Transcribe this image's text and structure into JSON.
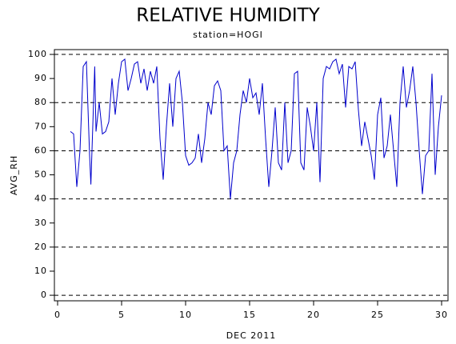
{
  "chart_data": {
    "type": "line",
    "title": "RELATIVE HUMIDITY",
    "subtitle": "station=HOGI",
    "x_label": "DEC 2011",
    "y_label": "AVG_RH",
    "x": [
      1,
      1.25,
      1.5,
      1.75,
      2,
      2.25,
      2.5,
      2.6,
      2.9,
      3,
      3.25,
      3.5,
      3.75,
      4,
      4.25,
      4.5,
      4.75,
      5,
      5.25,
      5.5,
      5.75,
      6,
      6.25,
      6.5,
      6.75,
      7,
      7.25,
      7.5,
      7.75,
      8,
      8.25,
      8.5,
      8.75,
      9,
      9.25,
      9.5,
      9.75,
      10,
      10.25,
      10.5,
      10.75,
      11,
      11.25,
      11.5,
      11.75,
      12,
      12.25,
      12.5,
      12.75,
      13,
      13.25,
      13.5,
      13.75,
      14,
      14.25,
      14.5,
      14.75,
      15,
      15.25,
      15.5,
      15.75,
      16,
      16.25,
      16.5,
      16.75,
      17,
      17.25,
      17.5,
      17.75,
      18,
      18.25,
      18.5,
      18.75,
      19,
      19.25,
      19.5,
      19.75,
      20,
      20.25,
      20.5,
      20.75,
      21,
      21.25,
      21.5,
      21.75,
      22,
      22.25,
      22.5,
      22.75,
      23,
      23.25,
      23.5,
      23.75,
      24,
      24.25,
      24.5,
      24.75,
      25,
      25.25,
      25.5,
      25.75,
      26,
      26.25,
      26.5,
      26.75,
      27,
      27.25,
      27.5,
      27.75,
      28,
      28.25,
      28.5,
      28.75,
      29,
      29.25,
      29.5,
      29.75,
      30
    ],
    "series": [
      {
        "name": "AVG_RH",
        "color": "#0000cc",
        "values": [
          68,
          67,
          45,
          60,
          95,
          97,
          58,
          46,
          95,
          68,
          80,
          67,
          68,
          72,
          90,
          75,
          88,
          97,
          98,
          85,
          90,
          96,
          97,
          88,
          94,
          85,
          93,
          88,
          95,
          65,
          48,
          70,
          88,
          70,
          90,
          93,
          80,
          58,
          54,
          55,
          57,
          67,
          55,
          65,
          80,
          75,
          87,
          89,
          85,
          60,
          62,
          40,
          55,
          60,
          75,
          85,
          80,
          90,
          82,
          84,
          75,
          88,
          65,
          45,
          60,
          78,
          55,
          52,
          80,
          55,
          60,
          92,
          93,
          55,
          52,
          78,
          70,
          60,
          80,
          47,
          90,
          95,
          94,
          97,
          98,
          92,
          96,
          78,
          95,
          94,
          97,
          77,
          62,
          72,
          65,
          58,
          48,
          75,
          82,
          57,
          62,
          75,
          60,
          45,
          80,
          95,
          78,
          85,
          95,
          80,
          60,
          42,
          58,
          60,
          92,
          50,
          70,
          83
        ]
      }
    ],
    "xlim": [
      -0.25,
      30.5
    ],
    "xticks": [
      0,
      5,
      10,
      15,
      20,
      25,
      30
    ],
    "ylim": [
      -2.3,
      102
    ],
    "yticks": [
      0,
      10,
      20,
      30,
      40,
      50,
      60,
      70,
      80,
      90,
      100
    ],
    "grid_lines": [
      0,
      20,
      40,
      60,
      80,
      100
    ]
  }
}
